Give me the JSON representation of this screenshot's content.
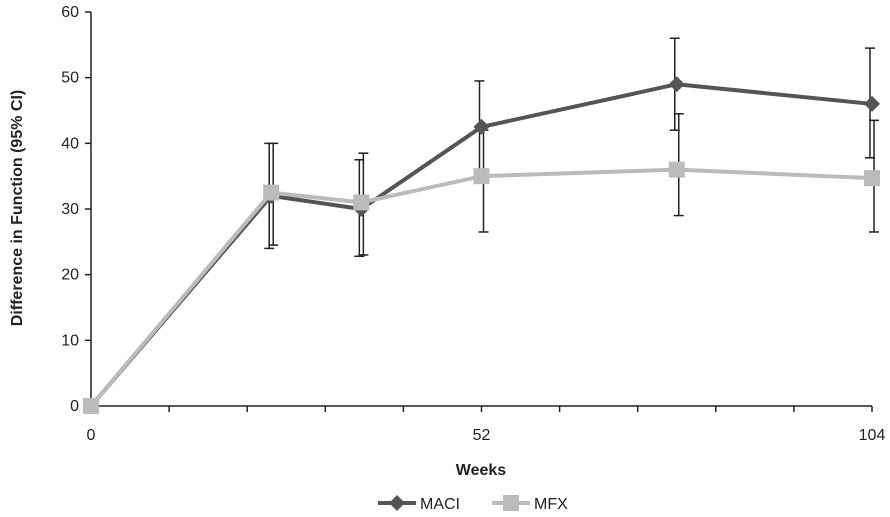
{
  "chart_data": {
    "type": "line",
    "xlabel": "Weeks",
    "ylabel": "Difference in Function (95% CI)",
    "xlim": [
      0,
      104
    ],
    "ylim": [
      0,
      60
    ],
    "x_ticks": [
      0,
      52,
      104
    ],
    "x_minor_ticks": [
      0,
      10.4,
      20.8,
      31.2,
      41.6,
      52,
      62.4,
      72.8,
      83.2,
      93.6,
      104
    ],
    "y_ticks": [
      0,
      10,
      20,
      30,
      40,
      50,
      60
    ],
    "legend_position": "bottom",
    "grid": false,
    "series": [
      {
        "name": "MACI",
        "color": "#555555",
        "marker": "diamond",
        "points": [
          {
            "x": 0,
            "y": 0,
            "lo": null,
            "hi": null
          },
          {
            "x": 24,
            "y": 32,
            "lo": 24,
            "hi": 40
          },
          {
            "x": 36,
            "y": 30,
            "lo": 22.8,
            "hi": 37.5
          },
          {
            "x": 52,
            "y": 42.5,
            "lo": 35,
            "hi": 49.5
          },
          {
            "x": 78,
            "y": 49,
            "lo": 42,
            "hi": 56
          },
          {
            "x": 104,
            "y": 46,
            "lo": 37.8,
            "hi": 54.5
          }
        ]
      },
      {
        "name": "MFX",
        "color": "#bbbbbb",
        "marker": "square",
        "points": [
          {
            "x": 0,
            "y": 0,
            "lo": null,
            "hi": null
          },
          {
            "x": 24,
            "y": 32.5,
            "lo": 24.5,
            "hi": 40
          },
          {
            "x": 36,
            "y": 31,
            "lo": 23,
            "hi": 38.5
          },
          {
            "x": 52,
            "y": 35,
            "lo": 26.5,
            "hi": 42
          },
          {
            "x": 78,
            "y": 36,
            "lo": 29,
            "hi": 44.5
          },
          {
            "x": 104,
            "y": 34.7,
            "lo": 26.5,
            "hi": 43.5
          }
        ]
      }
    ]
  }
}
